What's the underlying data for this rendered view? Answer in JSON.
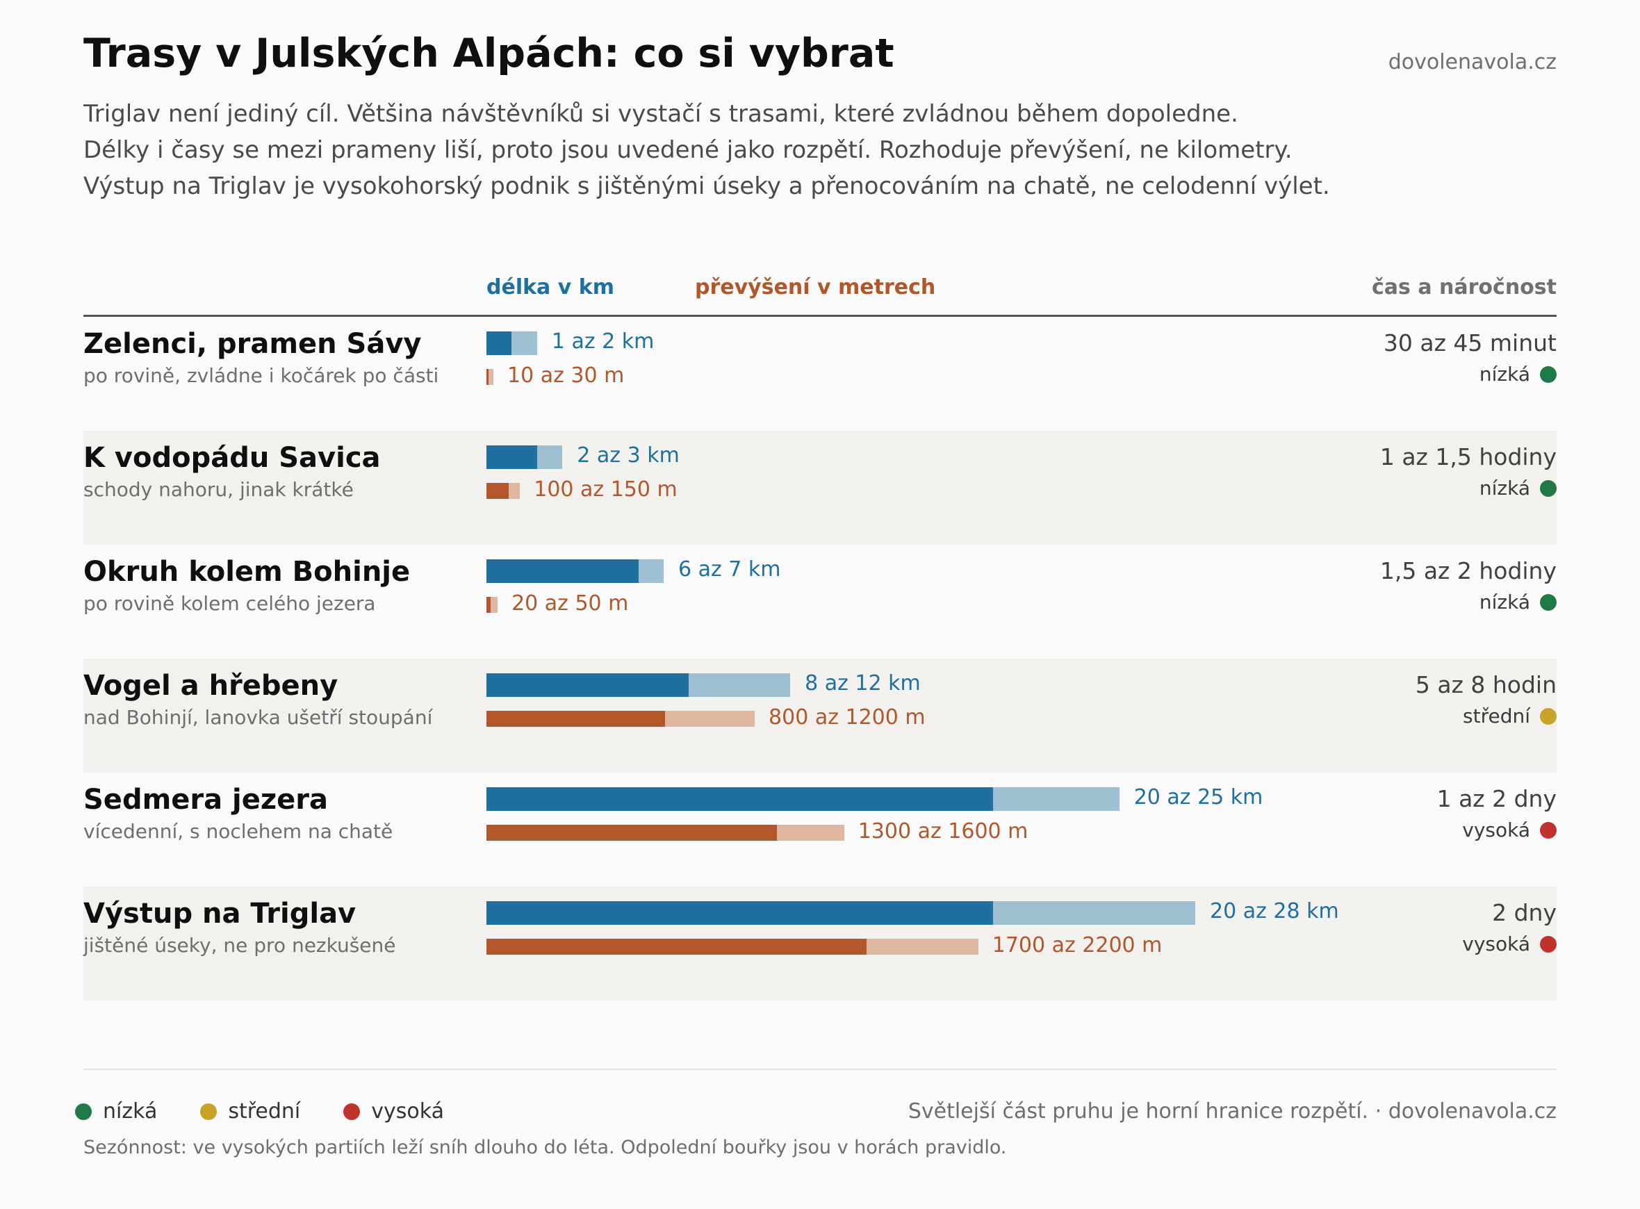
{
  "header": {
    "title": "Trasy v Julských Alpách: co si vybrat",
    "source": "dovolenavola.cz",
    "subtitle_lines": [
      "Triglav není jediný cíl. Většina návštěvníků si vystačí s trasami, které zvládnou během dopoledne.",
      "Délky i časy se mezi prameny liší, proto jsou uvedené jako rozpětí. Rozhoduje převýšení, ne kilometry.",
      "Výstup na Triglav je vysokohorský podnik s jištěnými úseky a přenocováním na chatě, ne celodenní výlet."
    ]
  },
  "columns": {
    "length": "délka v km",
    "elevation": "převýšení v metrech",
    "time": "čas a náročnost"
  },
  "colors": {
    "km_dark": "#1f6f9f",
    "km_light": "#9fbfd3",
    "ele_dark": "#b3562a",
    "ele_light": "#dfb6a0",
    "nizka": "#1f7a47",
    "stredni": "#c9a227",
    "vysoka": "#c0322b"
  },
  "chart_data": {
    "type": "bar",
    "categories": [
      "Zelenci, pramen Sávy",
      "K vodopádu Savica",
      "Okruh kolem Bohinje",
      "Vogel a hřebeny",
      "Sedmera jezera",
      "Výstup na Triglav"
    ],
    "series": [
      {
        "name": "délka v km",
        "values": [
          [
            1,
            2
          ],
          [
            2,
            3
          ],
          [
            6,
            7
          ],
          [
            8,
            12
          ],
          [
            20,
            25
          ],
          [
            20,
            28
          ]
        ]
      },
      {
        "name": "převýšení v metrech",
        "values": [
          [
            10,
            30
          ],
          [
            100,
            150
          ],
          [
            20,
            50
          ],
          [
            800,
            1200
          ],
          [
            1300,
            1600
          ],
          [
            1700,
            2200
          ]
        ]
      }
    ],
    "km_max": 28,
    "ele_max": 2200
  },
  "routes": [
    {
      "name": "Zelenci, pramen Sávy",
      "note": "po rovině, zvládne i kočárek po části",
      "km": [
        1,
        2
      ],
      "km_label": "1 az 2 km",
      "ele": [
        10,
        30
      ],
      "ele_label": "10 az 30 m",
      "time": "30 az 45 minut",
      "difficulty": "nízká",
      "level": "nizka"
    },
    {
      "name": "K vodopádu Savica",
      "note": "schody nahoru, jinak krátké",
      "km": [
        2,
        3
      ],
      "km_label": "2 az 3 km",
      "ele": [
        100,
        150
      ],
      "ele_label": "100 az 150 m",
      "time": "1 az 1,5 hodiny",
      "difficulty": "nízká",
      "level": "nizka"
    },
    {
      "name": "Okruh kolem Bohinje",
      "note": "po rovině kolem celého jezera",
      "km": [
        6,
        7
      ],
      "km_label": "6 az 7 km",
      "ele": [
        20,
        50
      ],
      "ele_label": "20 az 50 m",
      "time": "1,5 az 2 hodiny",
      "difficulty": "nízká",
      "level": "nizka"
    },
    {
      "name": "Vogel a hřebeny",
      "note": "nad Bohinjí, lanovka ušetří stoupání",
      "km": [
        8,
        12
      ],
      "km_label": "8 az 12 km",
      "ele": [
        800,
        1200
      ],
      "ele_label": "800 az 1200 m",
      "time": "5 az 8 hodin",
      "difficulty": "střední",
      "level": "stredni"
    },
    {
      "name": "Sedmera jezera",
      "note": "vícedenní, s noclehem na chatě",
      "km": [
        20,
        25
      ],
      "km_label": "20 az 25 km",
      "ele": [
        1300,
        1600
      ],
      "ele_label": "1300 az 1600 m",
      "time": "1 az 2 dny",
      "difficulty": "vysoká",
      "level": "vysoka"
    },
    {
      "name": "Výstup na Triglav",
      "note": "jištěné úseky, ne pro nezkušené",
      "km": [
        20,
        28
      ],
      "km_label": "20 az 28 km",
      "ele": [
        1700,
        2200
      ],
      "ele_label": "1700 az 2200 m",
      "time": "2 dny",
      "difficulty": "vysoká",
      "level": "vysoka"
    }
  ],
  "legend": [
    {
      "label": "nízká",
      "level": "nizka"
    },
    {
      "label": "střední",
      "level": "stredni"
    },
    {
      "label": "vysoká",
      "level": "vysoka"
    }
  ],
  "footer": {
    "note": "Světlejší část pruhu je horní hranice rozpětí. · dovolenavola.cz",
    "season": "Sezónnost: ve vysokých partiích leží sníh dlouho do léta. Odpolední bouřky jsou v horách pravidlo."
  }
}
